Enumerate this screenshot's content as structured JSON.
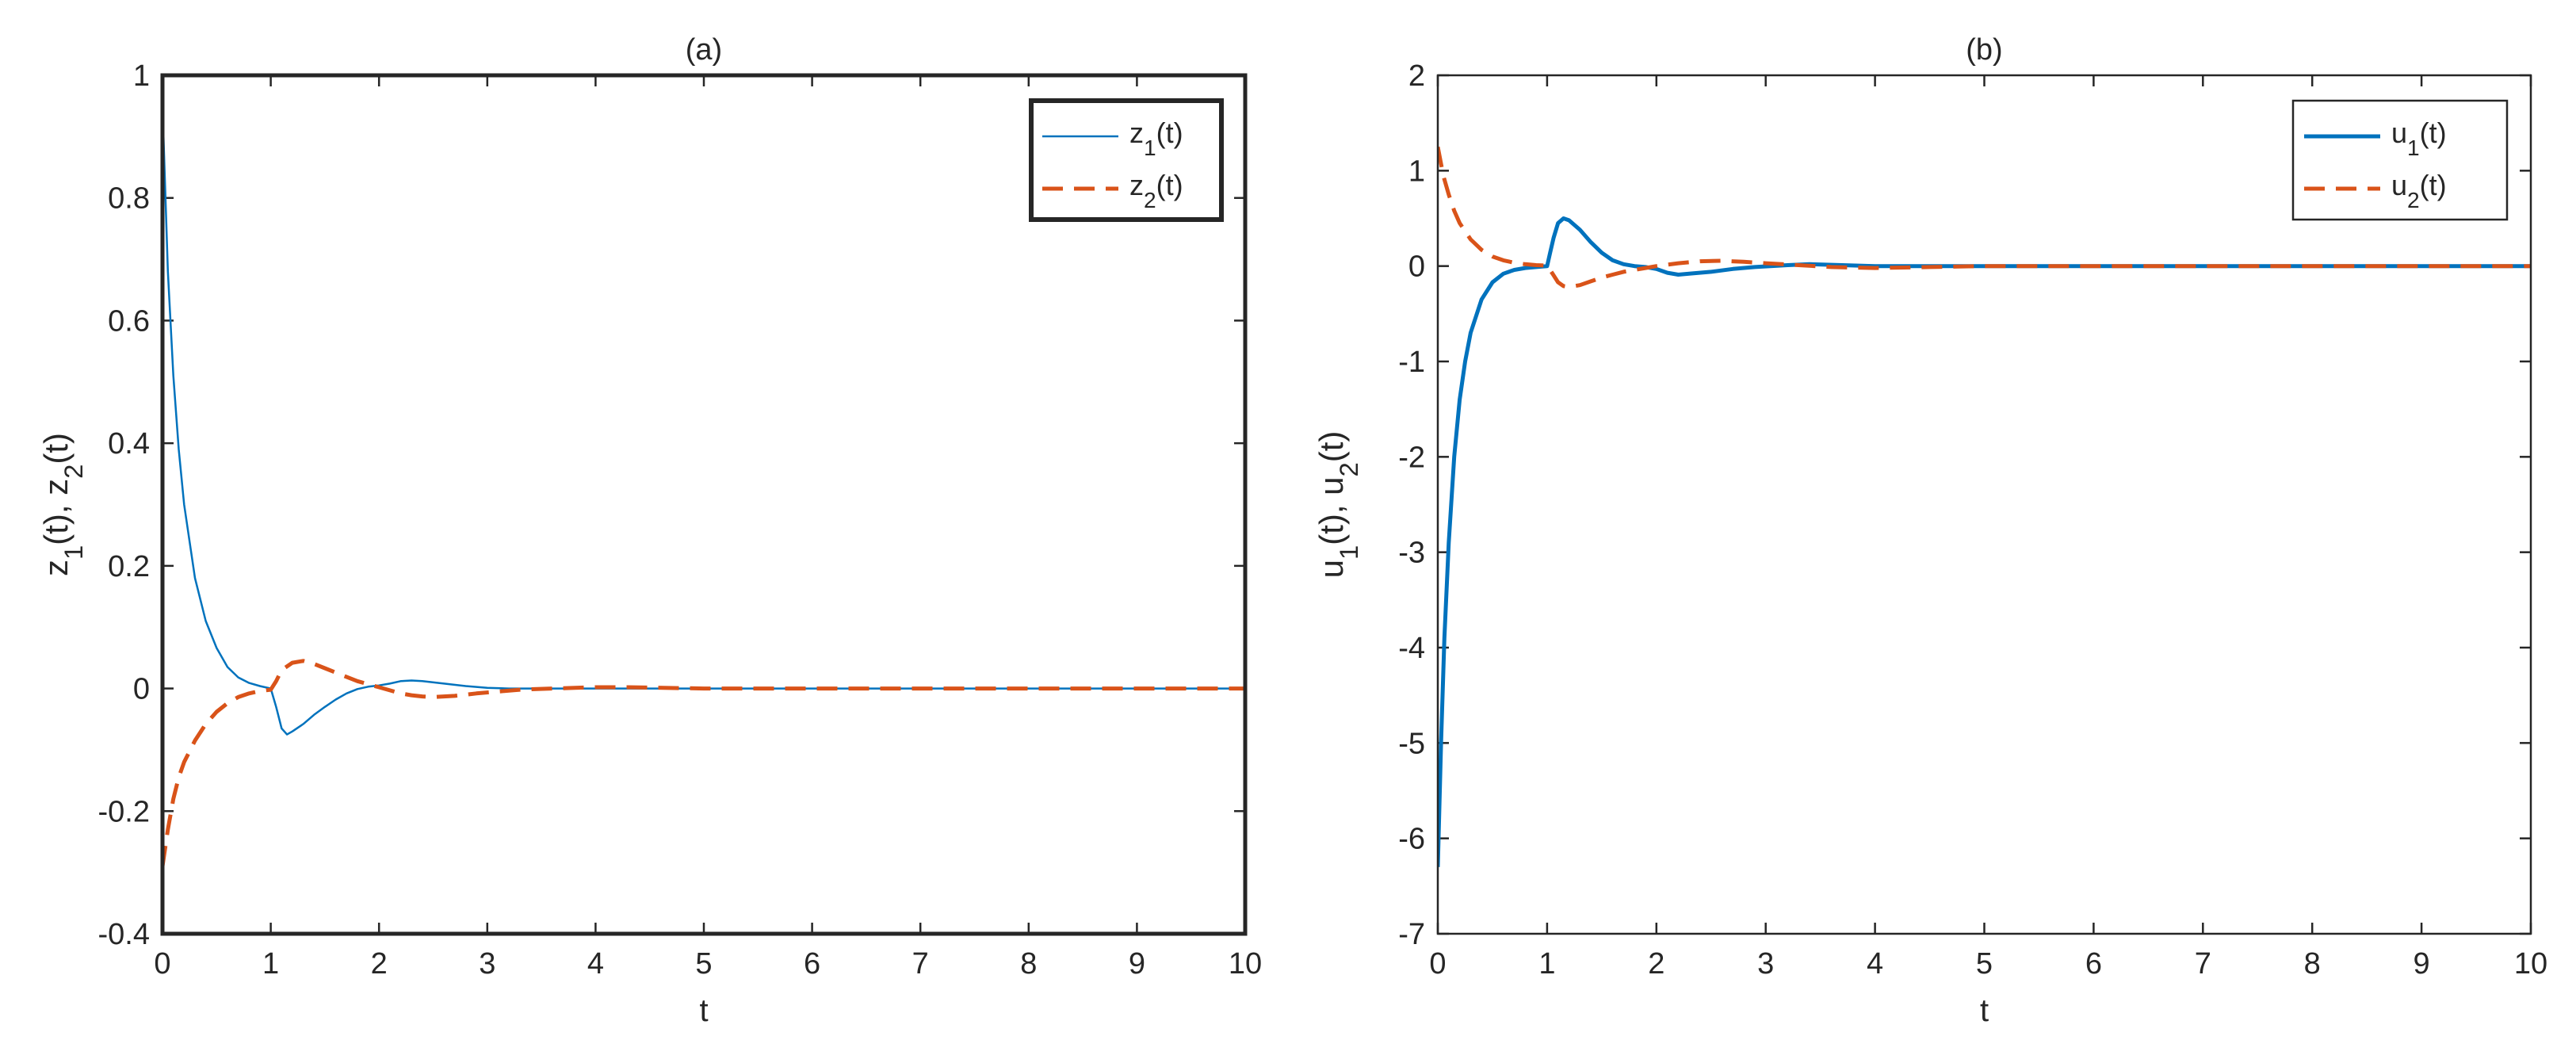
{
  "chart_data": [
    {
      "type": "line",
      "title": "(a)",
      "xlabel": "t",
      "ylabel": {
        "parts": [
          [
            "z",
            false
          ],
          [
            "1",
            true
          ],
          [
            "(t), z",
            false
          ],
          [
            "2",
            true
          ],
          [
            "(t)",
            false
          ]
        ]
      },
      "xlim": [
        0,
        10
      ],
      "ylim": [
        -0.4,
        1
      ],
      "xticks": [
        0,
        1,
        2,
        3,
        4,
        5,
        6,
        7,
        8,
        9,
        10
      ],
      "xtick_labels": [
        "0",
        "1",
        "2",
        "3",
        "4",
        "5",
        "6",
        "7",
        "8",
        "9",
        "10"
      ],
      "yticks": [
        -0.4,
        -0.2,
        0,
        0.2,
        0.4,
        0.6,
        0.8,
        1
      ],
      "ytick_labels": [
        "-0.4",
        "-0.2",
        "0",
        "0.2",
        "0.4",
        "0.6",
        "0.8",
        "1"
      ],
      "grid": false,
      "legend": {
        "placement": "top-right",
        "boxed_bold": true
      },
      "series": [
        {
          "name": "z1(t)",
          "label_parts": [
            [
              "z",
              false
            ],
            [
              "1",
              true
            ],
            [
              "(t)",
              false
            ]
          ],
          "color": "#0072BD",
          "style": "solid",
          "width": 2.5,
          "x": [
            0,
            0.05,
            0.1,
            0.15,
            0.2,
            0.3,
            0.4,
            0.5,
            0.6,
            0.7,
            0.8,
            0.9,
            1.0,
            1.05,
            1.1,
            1.15,
            1.2,
            1.3,
            1.4,
            1.5,
            1.6,
            1.7,
            1.8,
            1.9,
            2.0,
            2.1,
            2.2,
            2.3,
            2.4,
            2.6,
            2.8,
            3.0,
            3.2,
            3.5,
            4.0,
            5.0,
            6.0,
            7.0,
            8.0,
            9.0,
            10.0
          ],
          "y": [
            0.95,
            0.68,
            0.51,
            0.39,
            0.3,
            0.18,
            0.11,
            0.066,
            0.035,
            0.018,
            0.009,
            0.004,
            0.0,
            -0.03,
            -0.065,
            -0.075,
            -0.07,
            -0.058,
            -0.043,
            -0.03,
            -0.018,
            -0.008,
            -0.001,
            0.003,
            0.005,
            0.008,
            0.012,
            0.013,
            0.012,
            0.008,
            0.004,
            0.001,
            0.0,
            0.0,
            0.0,
            0.0,
            0.0,
            0.0,
            0.0,
            0.0,
            0.0
          ]
        },
        {
          "name": "z2(t)",
          "label_parts": [
            [
              "z",
              false
            ],
            [
              "2",
              true
            ],
            [
              "(t)",
              false
            ]
          ],
          "color": "#D95319",
          "style": "dashed",
          "width": 5,
          "x": [
            0,
            0.05,
            0.1,
            0.15,
            0.2,
            0.3,
            0.4,
            0.5,
            0.6,
            0.7,
            0.8,
            0.9,
            1.0,
            1.05,
            1.1,
            1.2,
            1.3,
            1.4,
            1.5,
            1.6,
            1.7,
            1.8,
            1.9,
            2.0,
            2.1,
            2.2,
            2.3,
            2.4,
            2.5,
            2.7,
            2.9,
            3.1,
            3.3,
            3.6,
            4.0,
            4.3,
            5.0,
            6.0,
            7.0,
            8.0,
            9.0,
            10.0
          ],
          "y": [
            -0.29,
            -0.23,
            -0.18,
            -0.145,
            -0.12,
            -0.085,
            -0.058,
            -0.038,
            -0.024,
            -0.014,
            -0.008,
            -0.004,
            -0.002,
            0.012,
            0.03,
            0.042,
            0.045,
            0.04,
            0.033,
            0.026,
            0.019,
            0.012,
            0.007,
            0.002,
            -0.003,
            -0.008,
            -0.011,
            -0.013,
            -0.014,
            -0.012,
            -0.008,
            -0.005,
            -0.002,
            0.0,
            0.002,
            0.002,
            0.0,
            0.0,
            0.0,
            0.0,
            0.0,
            0.0
          ]
        }
      ]
    },
    {
      "type": "line",
      "title": "(b)",
      "xlabel": "t",
      "ylabel": {
        "parts": [
          [
            "u",
            false
          ],
          [
            "1",
            true
          ],
          [
            "(t), u",
            false
          ],
          [
            "2",
            true
          ],
          [
            "(t)",
            false
          ]
        ]
      },
      "xlim": [
        0,
        10
      ],
      "ylim": [
        -7,
        2
      ],
      "xticks": [
        0,
        1,
        2,
        3,
        4,
        5,
        6,
        7,
        8,
        9,
        10
      ],
      "xtick_labels": [
        "0",
        "1",
        "2",
        "3",
        "4",
        "5",
        "6",
        "7",
        "8",
        "9",
        "10"
      ],
      "yticks": [
        -7,
        -6,
        -5,
        -4,
        -3,
        -2,
        -1,
        0,
        1,
        2
      ],
      "ytick_labels": [
        "-7",
        "-6",
        "-5",
        "-4",
        "-3",
        "-2",
        "-1",
        "0",
        "1",
        "2"
      ],
      "grid": false,
      "legend": {
        "placement": "top-right",
        "boxed_bold": false
      },
      "series": [
        {
          "name": "u1(t)",
          "label_parts": [
            [
              "u",
              false
            ],
            [
              "1",
              true
            ],
            [
              "(t)",
              false
            ]
          ],
          "color": "#0072BD",
          "style": "solid",
          "width": 5,
          "x": [
            0,
            0.03,
            0.06,
            0.1,
            0.15,
            0.2,
            0.25,
            0.3,
            0.4,
            0.5,
            0.6,
            0.7,
            0.8,
            0.9,
            1.0,
            1.03,
            1.06,
            1.1,
            1.15,
            1.2,
            1.3,
            1.4,
            1.5,
            1.6,
            1.7,
            1.8,
            1.9,
            2.0,
            2.1,
            2.2,
            2.3,
            2.5,
            2.7,
            2.9,
            3.2,
            3.4,
            3.7,
            4.0,
            5.0,
            6.0,
            7.0,
            8.0,
            9.0,
            10.0
          ],
          "y": [
            -6.3,
            -5.0,
            -3.9,
            -2.9,
            -2.0,
            -1.4,
            -1.0,
            -0.7,
            -0.35,
            -0.17,
            -0.08,
            -0.04,
            -0.02,
            -0.01,
            0.0,
            0.15,
            0.3,
            0.45,
            0.5,
            0.48,
            0.38,
            0.25,
            0.14,
            0.06,
            0.02,
            0.0,
            -0.01,
            -0.03,
            -0.07,
            -0.09,
            -0.08,
            -0.06,
            -0.03,
            -0.01,
            0.01,
            0.02,
            0.01,
            0.0,
            0.0,
            0.0,
            0.0,
            0.0,
            0.0,
            0.0
          ]
        },
        {
          "name": "u2(t)",
          "label_parts": [
            [
              "u",
              false
            ],
            [
              "2",
              true
            ],
            [
              "(t)",
              false
            ]
          ],
          "color": "#D95319",
          "style": "dashed",
          "width": 5,
          "x": [
            0,
            0.05,
            0.1,
            0.15,
            0.2,
            0.3,
            0.4,
            0.5,
            0.6,
            0.7,
            0.8,
            0.9,
            1.0,
            1.05,
            1.1,
            1.15,
            1.2,
            1.3,
            1.4,
            1.5,
            1.6,
            1.7,
            1.8,
            1.9,
            2.0,
            2.2,
            2.4,
            2.6,
            2.8,
            3.0,
            3.3,
            3.6,
            4.0,
            4.5,
            5.0,
            6.0,
            7.0,
            8.0,
            9.0,
            10.0
          ],
          "y": [
            1.25,
            0.95,
            0.75,
            0.58,
            0.45,
            0.28,
            0.17,
            0.1,
            0.06,
            0.035,
            0.02,
            0.01,
            0.005,
            -0.08,
            -0.17,
            -0.21,
            -0.22,
            -0.2,
            -0.16,
            -0.12,
            -0.09,
            -0.06,
            -0.04,
            -0.02,
            0.0,
            0.03,
            0.05,
            0.055,
            0.045,
            0.03,
            0.01,
            -0.01,
            -0.02,
            -0.01,
            0.0,
            0.0,
            0.0,
            0.0,
            0.0,
            0.0
          ]
        }
      ]
    }
  ]
}
